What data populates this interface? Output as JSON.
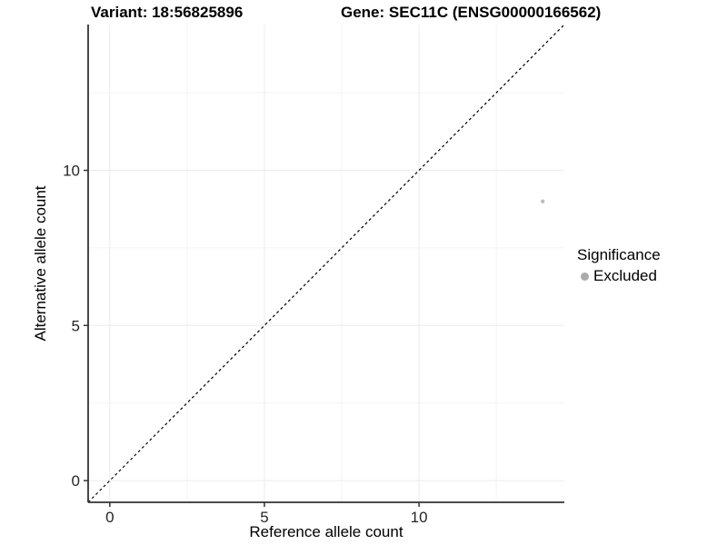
{
  "chart_data": {
    "type": "scatter",
    "title_left": "Variant: 18:56825896",
    "title_right": "Gene: SEC11C (ENSG00000166562)",
    "xlabel": "Reference allele count",
    "ylabel": "Alternative allele count",
    "xlim": [
      -0.7,
      14.7
    ],
    "ylim": [
      -0.7,
      14.7
    ],
    "xticks": [
      0,
      5,
      10
    ],
    "yticks": [
      0,
      5,
      10
    ],
    "xticks_minor": [
      2.5,
      7.5,
      12.5
    ],
    "yticks_minor": [
      2.5,
      7.5,
      12.5
    ],
    "grid": true,
    "identity_line": {
      "slope": 1,
      "intercept": 0,
      "style": "dashed",
      "color": "#000000"
    },
    "series": [
      {
        "name": "Excluded",
        "color": "#bdbdbd",
        "point_radius": 2.2,
        "points": [
          {
            "x": 14,
            "y": 9
          }
        ]
      }
    ],
    "legend": {
      "title": "Significance",
      "position": "right",
      "items": [
        {
          "label": "Excluded",
          "color": "#aaaaaa"
        }
      ]
    }
  },
  "colors": {
    "axis": "#333333",
    "tick_label": "#262626",
    "grid_major": "#ebebeb",
    "grid_minor": "#f4f4f4",
    "background": "#ffffff"
  }
}
